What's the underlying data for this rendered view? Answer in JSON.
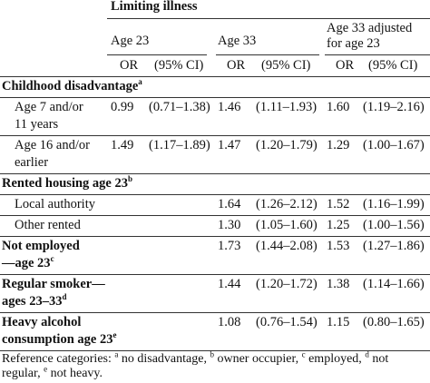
{
  "header": {
    "group": "Limiting illness",
    "columns": [
      [
        "Age 23"
      ],
      [
        "Age 33"
      ],
      [
        "Age 33 adjusted",
        "for age 23"
      ]
    ],
    "subheaders": [
      "OR",
      "(95% CI)",
      "OR",
      "(95% CI)",
      "OR",
      "(95% CI)"
    ]
  },
  "rows": [
    {
      "label": [
        "Childhood disadvantage"
      ],
      "sup": "a",
      "heading": true
    },
    {
      "label": [
        "Age 7 and/or",
        "11 years"
      ],
      "values": [
        "0.99",
        "(0.71–1.38)",
        "1.46",
        "(1.11–1.93)",
        "1.60",
        "(1.19–2.16)"
      ]
    },
    {
      "label": [
        "Age 16 and/or",
        "earlier"
      ],
      "values": [
        "1.49",
        "(1.17–1.89)",
        "1.47",
        "(1.20–1.79)",
        "1.29",
        "(1.00–1.67)"
      ]
    },
    {
      "label": [
        "Rented housing age 23"
      ],
      "sup": "b",
      "heading": true
    },
    {
      "label": [
        "Local authority"
      ],
      "values": [
        null,
        null,
        "1.64",
        "(1.26–2.12)",
        "1.52",
        "(1.16–1.99)"
      ]
    },
    {
      "label": [
        "Other rented"
      ],
      "values": [
        null,
        null,
        "1.30",
        "(1.05–1.60)",
        "1.25",
        "(1.00–1.56)"
      ]
    },
    {
      "label": [
        "Not employed",
        "—age 23"
      ],
      "sup": "c",
      "heading": true,
      "values": [
        null,
        null,
        "1.73",
        "(1.44–2.08)",
        "1.53",
        "(1.27–1.86)"
      ]
    },
    {
      "label": [
        "Regular smoker—",
        "ages 23–33"
      ],
      "sup": "d",
      "heading": true,
      "values": [
        null,
        null,
        "1.44",
        "(1.20–1.72)",
        "1.38",
        "(1.14–1.66)"
      ]
    },
    {
      "label": [
        "Heavy alcohol",
        "consumption age 23"
      ],
      "sup": "e",
      "heading": true,
      "values": [
        null,
        null,
        "1.08",
        "(0.76–1.54)",
        "1.15",
        "(0.80–1.65)"
      ]
    }
  ],
  "footnote": {
    "intro": "Reference categories:",
    "items": [
      {
        "sup": "a",
        "text": "no disadvantage,"
      },
      {
        "sup": "b",
        "text": "owner occupier,"
      },
      {
        "sup": "c",
        "text": "employed,"
      },
      {
        "sup": "d",
        "text": "not regular,"
      },
      {
        "sup": "e",
        "text": "not heavy."
      }
    ]
  }
}
